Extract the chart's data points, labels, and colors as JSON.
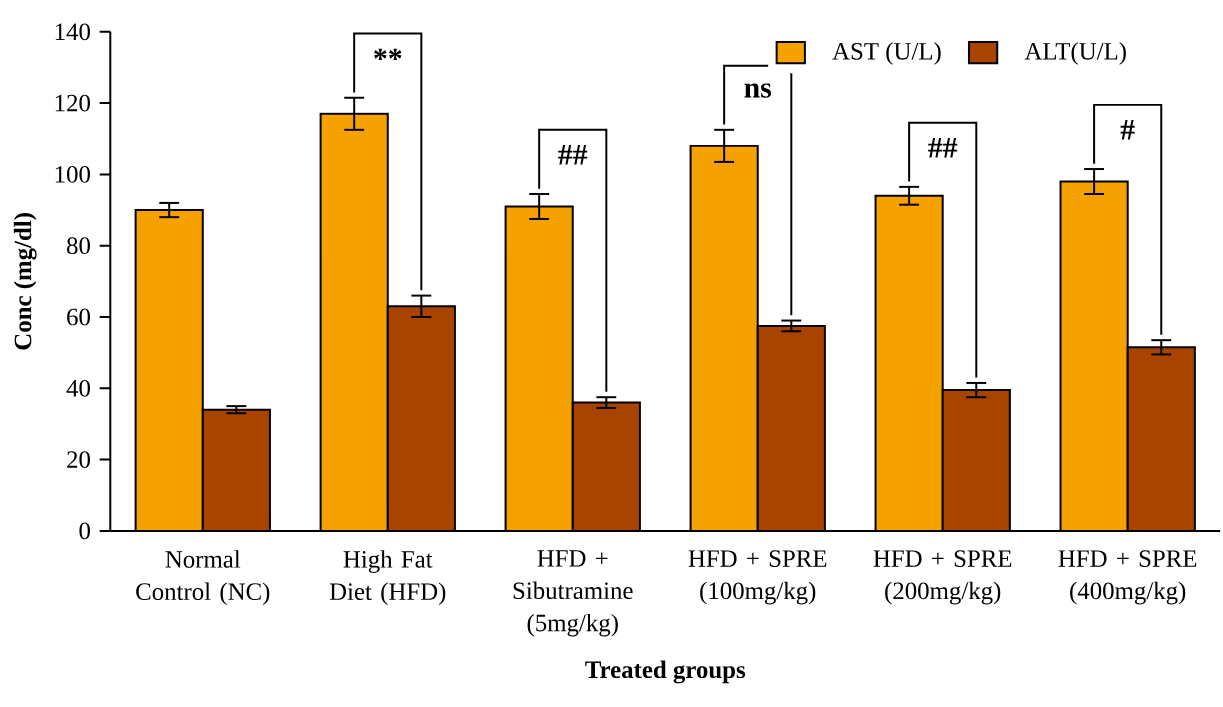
{
  "chart_data": {
    "type": "bar",
    "xlabel": "Treated groups",
    "ylabel": "Conc (mg/dl)",
    "categories": [
      "Normal Control (NC)",
      "High Fat Diet (HFD)",
      "HFD + Sibutramine (5mg/kg)",
      "HFD + SPRE (100mg/kg)",
      "HFD + SPRE (200mg/kg)",
      "HFD + SPRE (400mg/kg)"
    ],
    "series": [
      {
        "name": "AST (U/L)",
        "color": "#f5a100",
        "values": [
          90,
          117,
          91,
          108,
          94,
          98
        ],
        "errors": [
          2,
          4.5,
          3.5,
          4.5,
          2.5,
          3.5
        ]
      },
      {
        "name": "ALT(U/L)",
        "color": "#a84400",
        "values": [
          34,
          63,
          36,
          57.5,
          39.5,
          51.5
        ],
        "errors": [
          1,
          3,
          1.5,
          1.5,
          2,
          2
        ]
      }
    ],
    "ylim": [
      0,
      140
    ],
    "yticks": [
      0,
      20,
      40,
      60,
      80,
      100,
      120,
      140
    ],
    "grid": false,
    "legend": "top right",
    "annotations": [
      "**",
      "##",
      "ns",
      "##",
      "#"
    ]
  }
}
